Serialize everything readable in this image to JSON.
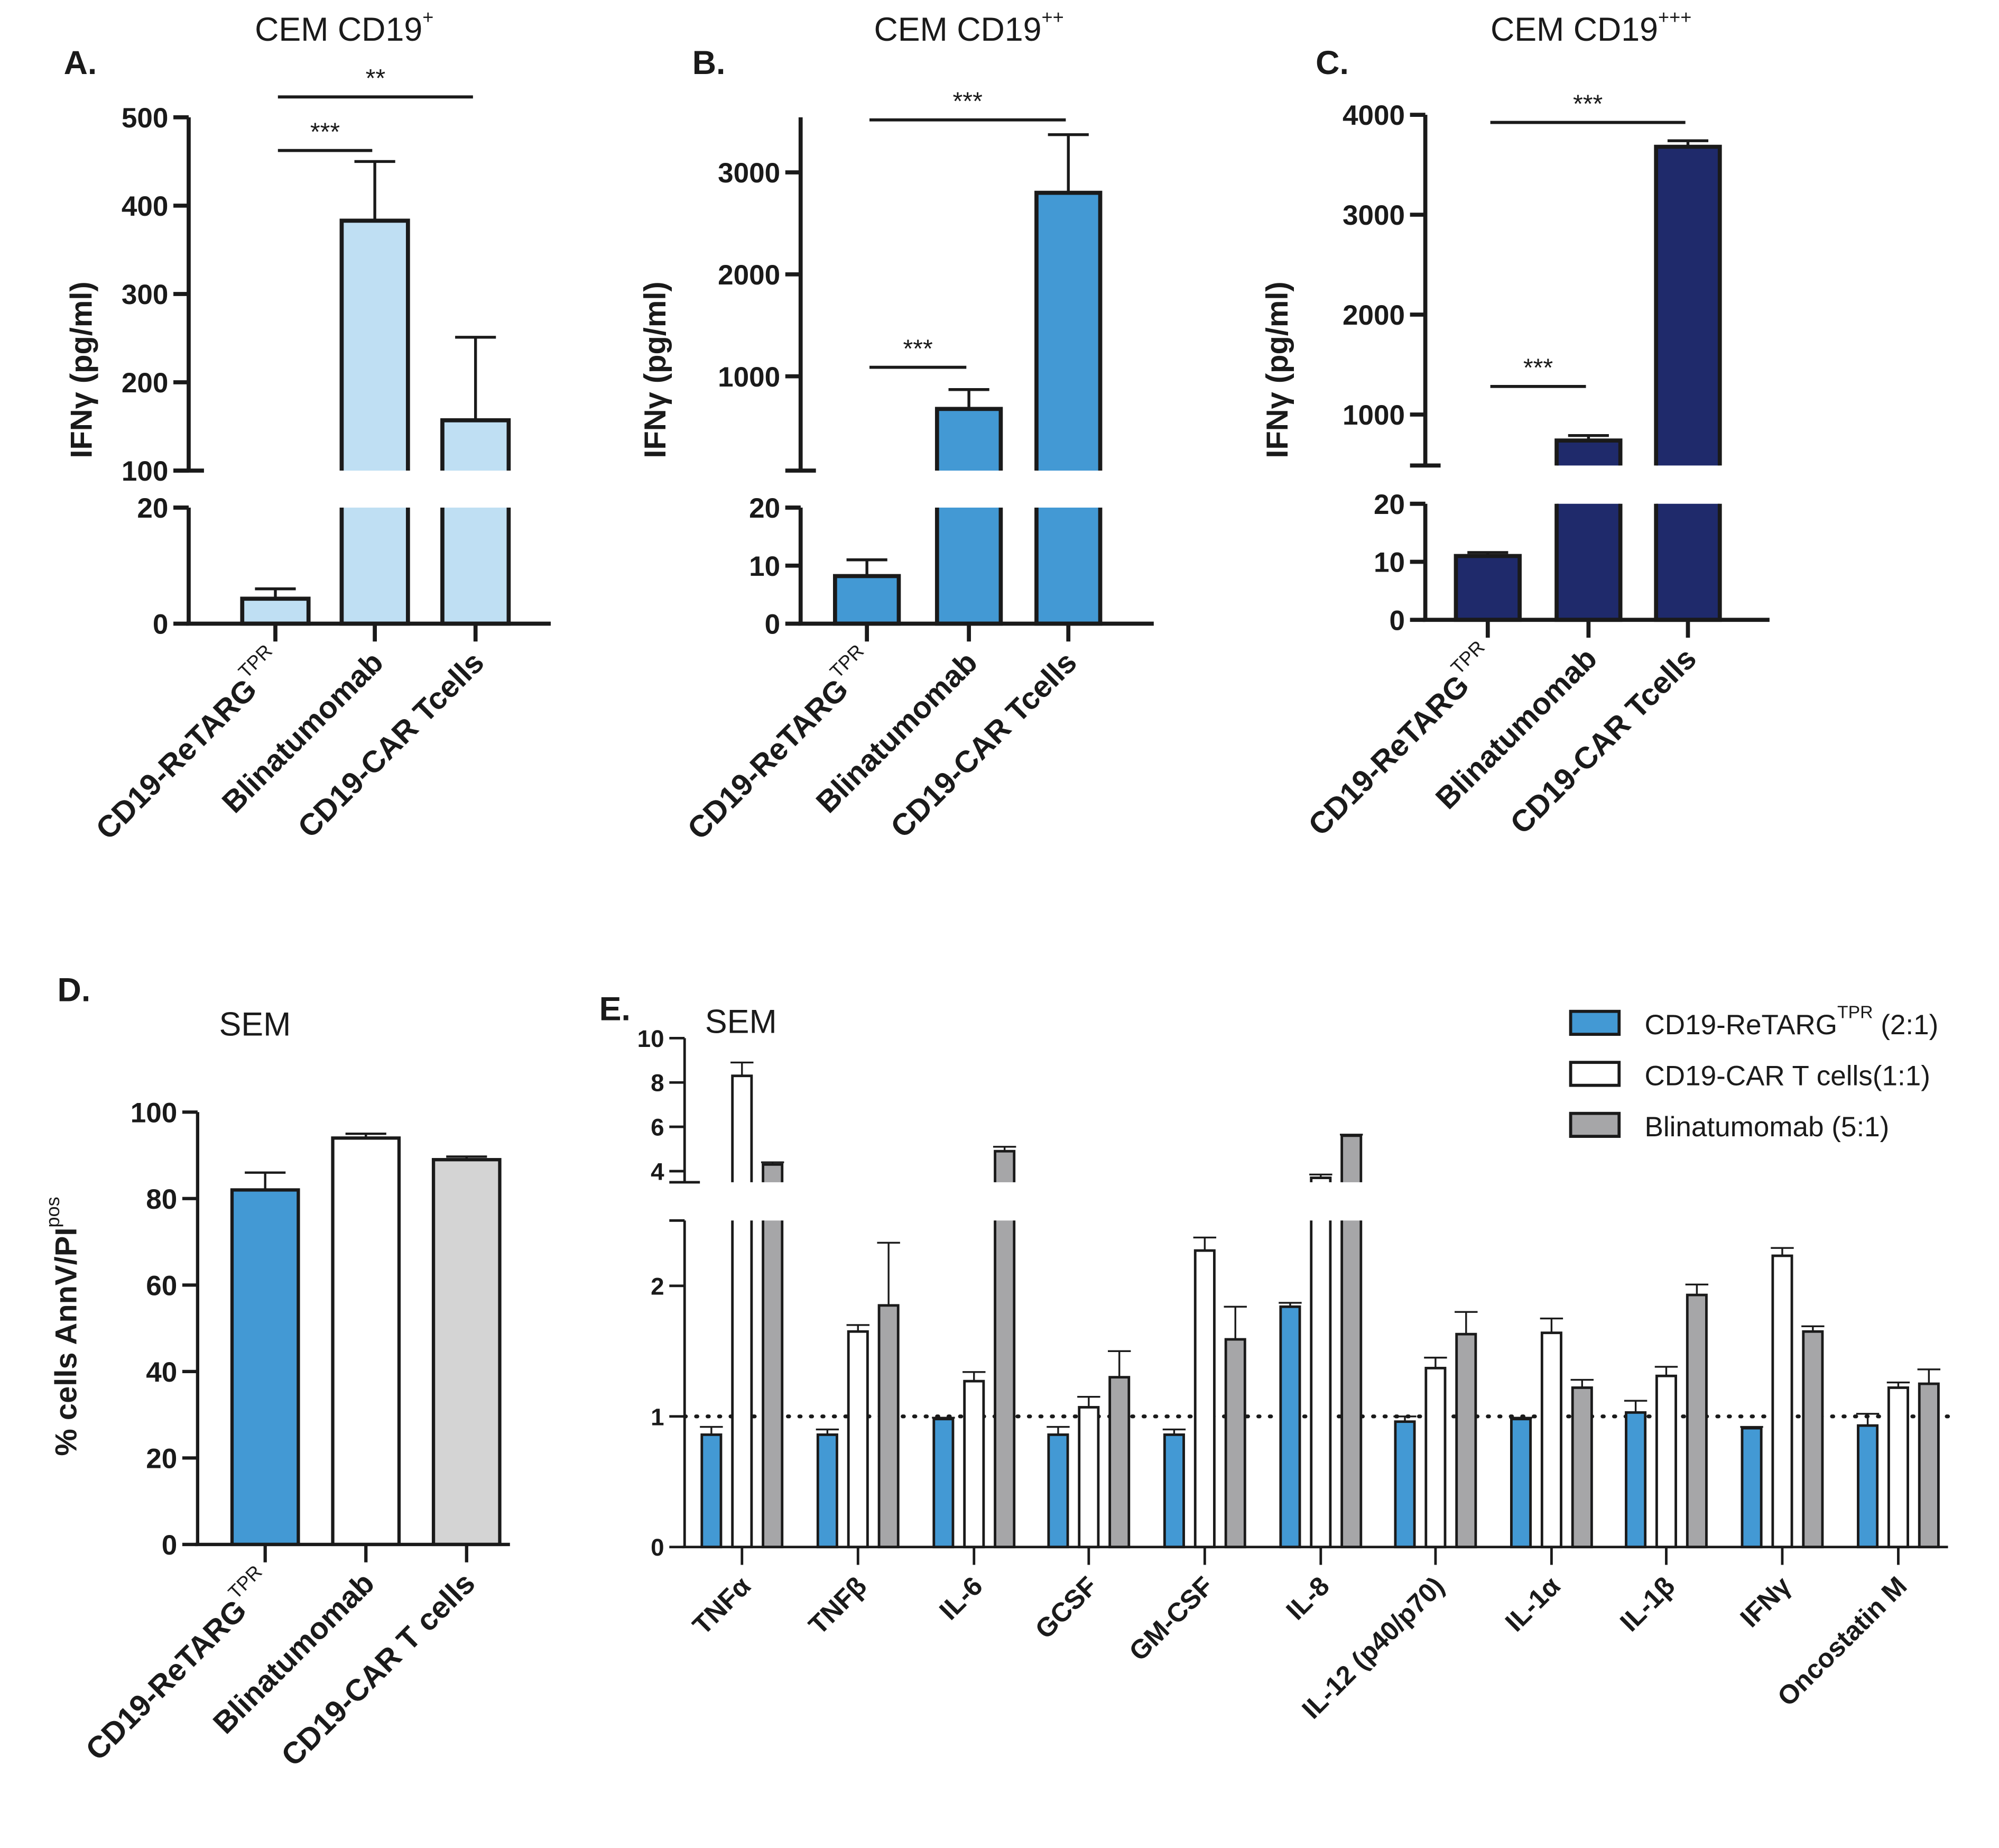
{
  "chart_data": [
    {
      "panel": "A",
      "label": "A.",
      "type": "bar",
      "title": "CEM CD19",
      "title_sup": "+",
      "ylabel": "IFNγ (pg/ml)",
      "categories": [
        {
          "text": "CD19-ReTARG",
          "sup": "TPR"
        },
        {
          "text": "Blinatumomab",
          "sup": ""
        },
        {
          "text": "CD19-CAR Tcells",
          "sup": ""
        }
      ],
      "series": [
        {
          "name": "IFNγ",
          "color": "#bfdff3",
          "values": [
            4.3,
            383,
            157
          ],
          "errors": [
            1.7,
            67,
            94
          ]
        }
      ],
      "ylim_lower": [
        0,
        20
      ],
      "ylim_upper": [
        100,
        500
      ],
      "yticks_lower": [
        0,
        20
      ],
      "yticks_upper": [
        100,
        200,
        300,
        400,
        500
      ],
      "significance": [
        {
          "from": 0,
          "to": 1,
          "label": "***"
        },
        {
          "from": 0,
          "to": 2,
          "label": "**"
        }
      ]
    },
    {
      "panel": "B",
      "label": "B.",
      "type": "bar",
      "title": "CEM CD19",
      "title_sup": "++",
      "ylabel": "IFNγ (pg/ml)",
      "categories": [
        {
          "text": "CD19-ReTARG",
          "sup": "TPR"
        },
        {
          "text": "Blinatumomab",
          "sup": ""
        },
        {
          "text": "CD19-CAR Tcells",
          "sup": ""
        }
      ],
      "series": [
        {
          "name": "IFNγ",
          "color": "#4399d4",
          "values": [
            8.2,
            680,
            2800
          ],
          "errors": [
            2.8,
            190,
            570
          ]
        }
      ],
      "ylim_lower": [
        0,
        20
      ],
      "ylim_upper": [
        75,
        3540
      ],
      "yticks_lower": [
        0,
        10,
        20
      ],
      "yticks_upper": [
        1000,
        2000,
        3000
      ],
      "significance": [
        {
          "from": 0,
          "to": 1,
          "label": "***"
        },
        {
          "from": 0,
          "to": 2,
          "label": "***"
        }
      ]
    },
    {
      "panel": "C",
      "label": "C.",
      "type": "bar",
      "title": "CEM CD19",
      "title_sup": "+++",
      "ylabel": "IFNγ (pg/ml)",
      "categories": [
        {
          "text": "CD19-ReTARG",
          "sup": "TPR"
        },
        {
          "text": "Blinatumomab",
          "sup": ""
        },
        {
          "text": "CD19-CAR Tcells",
          "sup": ""
        }
      ],
      "series": [
        {
          "name": "IFNγ",
          "color": "#1f2a6b",
          "values": [
            11,
            740,
            3680
          ],
          "errors": [
            0.6,
            50,
            60
          ]
        }
      ],
      "ylim_lower": [
        0,
        20
      ],
      "ylim_upper": [
        490,
        4000
      ],
      "yticks_lower": [
        0,
        10,
        20
      ],
      "yticks_upper": [
        1000,
        2000,
        3000,
        4000
      ],
      "significance": [
        {
          "from": 0,
          "to": 1,
          "label": "***"
        },
        {
          "from": 0,
          "to": 2,
          "label": "***"
        }
      ]
    },
    {
      "panel": "D",
      "label": "D.",
      "type": "bar",
      "title": "SEM",
      "title_sup": "",
      "ylabel": "% cells AnnV/PI",
      "ylabel_sup": "pos",
      "categories": [
        {
          "text": "CD19-ReTARG",
          "sup": "TPR"
        },
        {
          "text": "Blinatumomab",
          "sup": ""
        },
        {
          "text": "CD19-CAR T cells",
          "sup": ""
        }
      ],
      "series": [
        {
          "name": "% cells",
          "colors": [
            "#4399d4",
            "#ffffff",
            "#d4d4d4"
          ],
          "color": "#4399d4",
          "values": [
            82,
            94,
            89
          ],
          "errors": [
            4,
            1,
            0.7
          ]
        }
      ],
      "ylim_lower": [
        0,
        100
      ],
      "yticks_lower": [
        0,
        20,
        40,
        60,
        80,
        100
      ],
      "significance": []
    },
    {
      "panel": "E",
      "label": "E.",
      "type": "bar",
      "title": "SEM",
      "title_sup": "",
      "ylabel": "",
      "categories": [
        {
          "text": "TNFα",
          "sup": ""
        },
        {
          "text": "TNFβ",
          "sup": ""
        },
        {
          "text": "IL-6",
          "sup": ""
        },
        {
          "text": "GCSF",
          "sup": ""
        },
        {
          "text": "GM-CSF",
          "sup": ""
        },
        {
          "text": "IL-8",
          "sup": ""
        },
        {
          "text": "IL-12 (p40/p70)",
          "sup": ""
        },
        {
          "text": "IL-1α",
          "sup": ""
        },
        {
          "text": "IL-1β",
          "sup": ""
        },
        {
          "text": "IFNγ",
          "sup": ""
        },
        {
          "text": "Oncostatin M",
          "sup": ""
        }
      ],
      "series": [
        {
          "name": "CD19-ReTARG",
          "name_sup": "TPR",
          "name_suffix": " (2:1)",
          "color": "#4399d4",
          "values": [
            0.86,
            0.86,
            0.98,
            0.86,
            0.86,
            1.84,
            0.96,
            0.98,
            1.03,
            0.91,
            0.93
          ],
          "errors": [
            0.06,
            0.04,
            0.01,
            0.06,
            0.04,
            0.03,
            0.04,
            0.01,
            0.09,
            0.01,
            0.09
          ]
        },
        {
          "name": "CD19-CAR T cells(1:1)",
          "name_sup": "",
          "name_suffix": "",
          "color": "#ffffff",
          "values": [
            8.3,
            1.65,
            1.27,
            1.07,
            2.27,
            3.7,
            1.37,
            1.64,
            1.31,
            2.23,
            1.22
          ],
          "errors": [
            0.6,
            0.05,
            0.07,
            0.08,
            0.1,
            0.15,
            0.08,
            0.11,
            0.07,
            0.06,
            0.04
          ]
        },
        {
          "name": "Blinatumomab (5:1)",
          "name_sup": "",
          "name_suffix": "",
          "color": "#a6a6a8",
          "values": [
            4.3,
            1.85,
            4.9,
            1.3,
            1.59,
            5.6,
            1.63,
            1.22,
            1.93,
            1.65,
            1.25
          ],
          "errors": [
            0.1,
            0.48,
            0.2,
            0.2,
            0.25,
            0.05,
            0.17,
            0.06,
            0.08,
            0.04,
            0.11
          ]
        }
      ],
      "ylim_lower": [
        0,
        2.5
      ],
      "ylim_upper": [
        3.5,
        10
      ],
      "yticks_lower": [
        0,
        1,
        2
      ],
      "yticks_upper": [
        4,
        6,
        8,
        10
      ],
      "reference_line": 1,
      "legend": "top-right",
      "significance": []
    }
  ]
}
